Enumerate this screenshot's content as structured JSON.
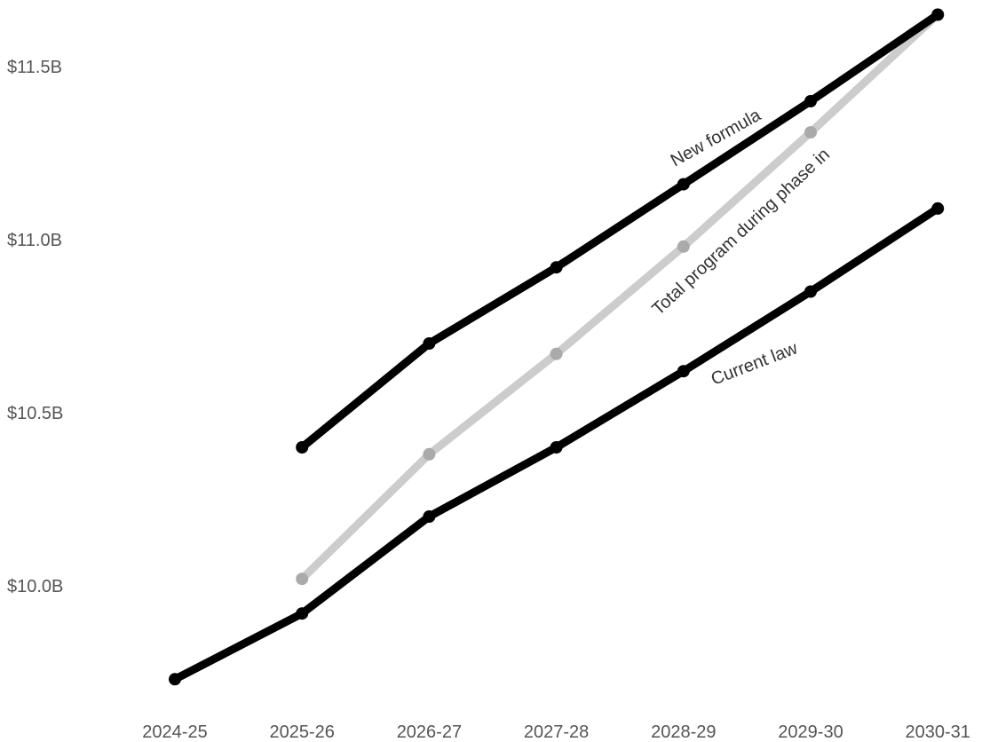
{
  "chart_data": {
    "type": "line",
    "categories": [
      "2024-25",
      "2025-26",
      "2026-27",
      "2027-28",
      "2028-29",
      "2029-30",
      "2030-31"
    ],
    "y_ticks": [
      {
        "value": 10.0,
        "label": "$10.0B"
      },
      {
        "value": 10.5,
        "label": "$10.5B"
      },
      {
        "value": 11.0,
        "label": "$11.0B"
      },
      {
        "value": 11.5,
        "label": "$11.5B"
      }
    ],
    "ylim": [
      9.7,
      11.7
    ],
    "grid": false,
    "legend": "none",
    "series": [
      {
        "name": "New formula",
        "color": "#000000",
        "values": [
          null,
          10.4,
          10.7,
          10.92,
          11.16,
          11.4,
          11.65
        ]
      },
      {
        "name": "Total program during phase in",
        "color": "#cccccc",
        "marker_color": "#aaaaaa",
        "values": [
          null,
          10.02,
          10.38,
          10.67,
          10.98,
          11.31,
          11.65
        ]
      },
      {
        "name": "Current law",
        "color": "#000000",
        "values": [
          9.73,
          9.92,
          10.2,
          10.4,
          10.62,
          10.85,
          11.09
        ]
      }
    ]
  }
}
